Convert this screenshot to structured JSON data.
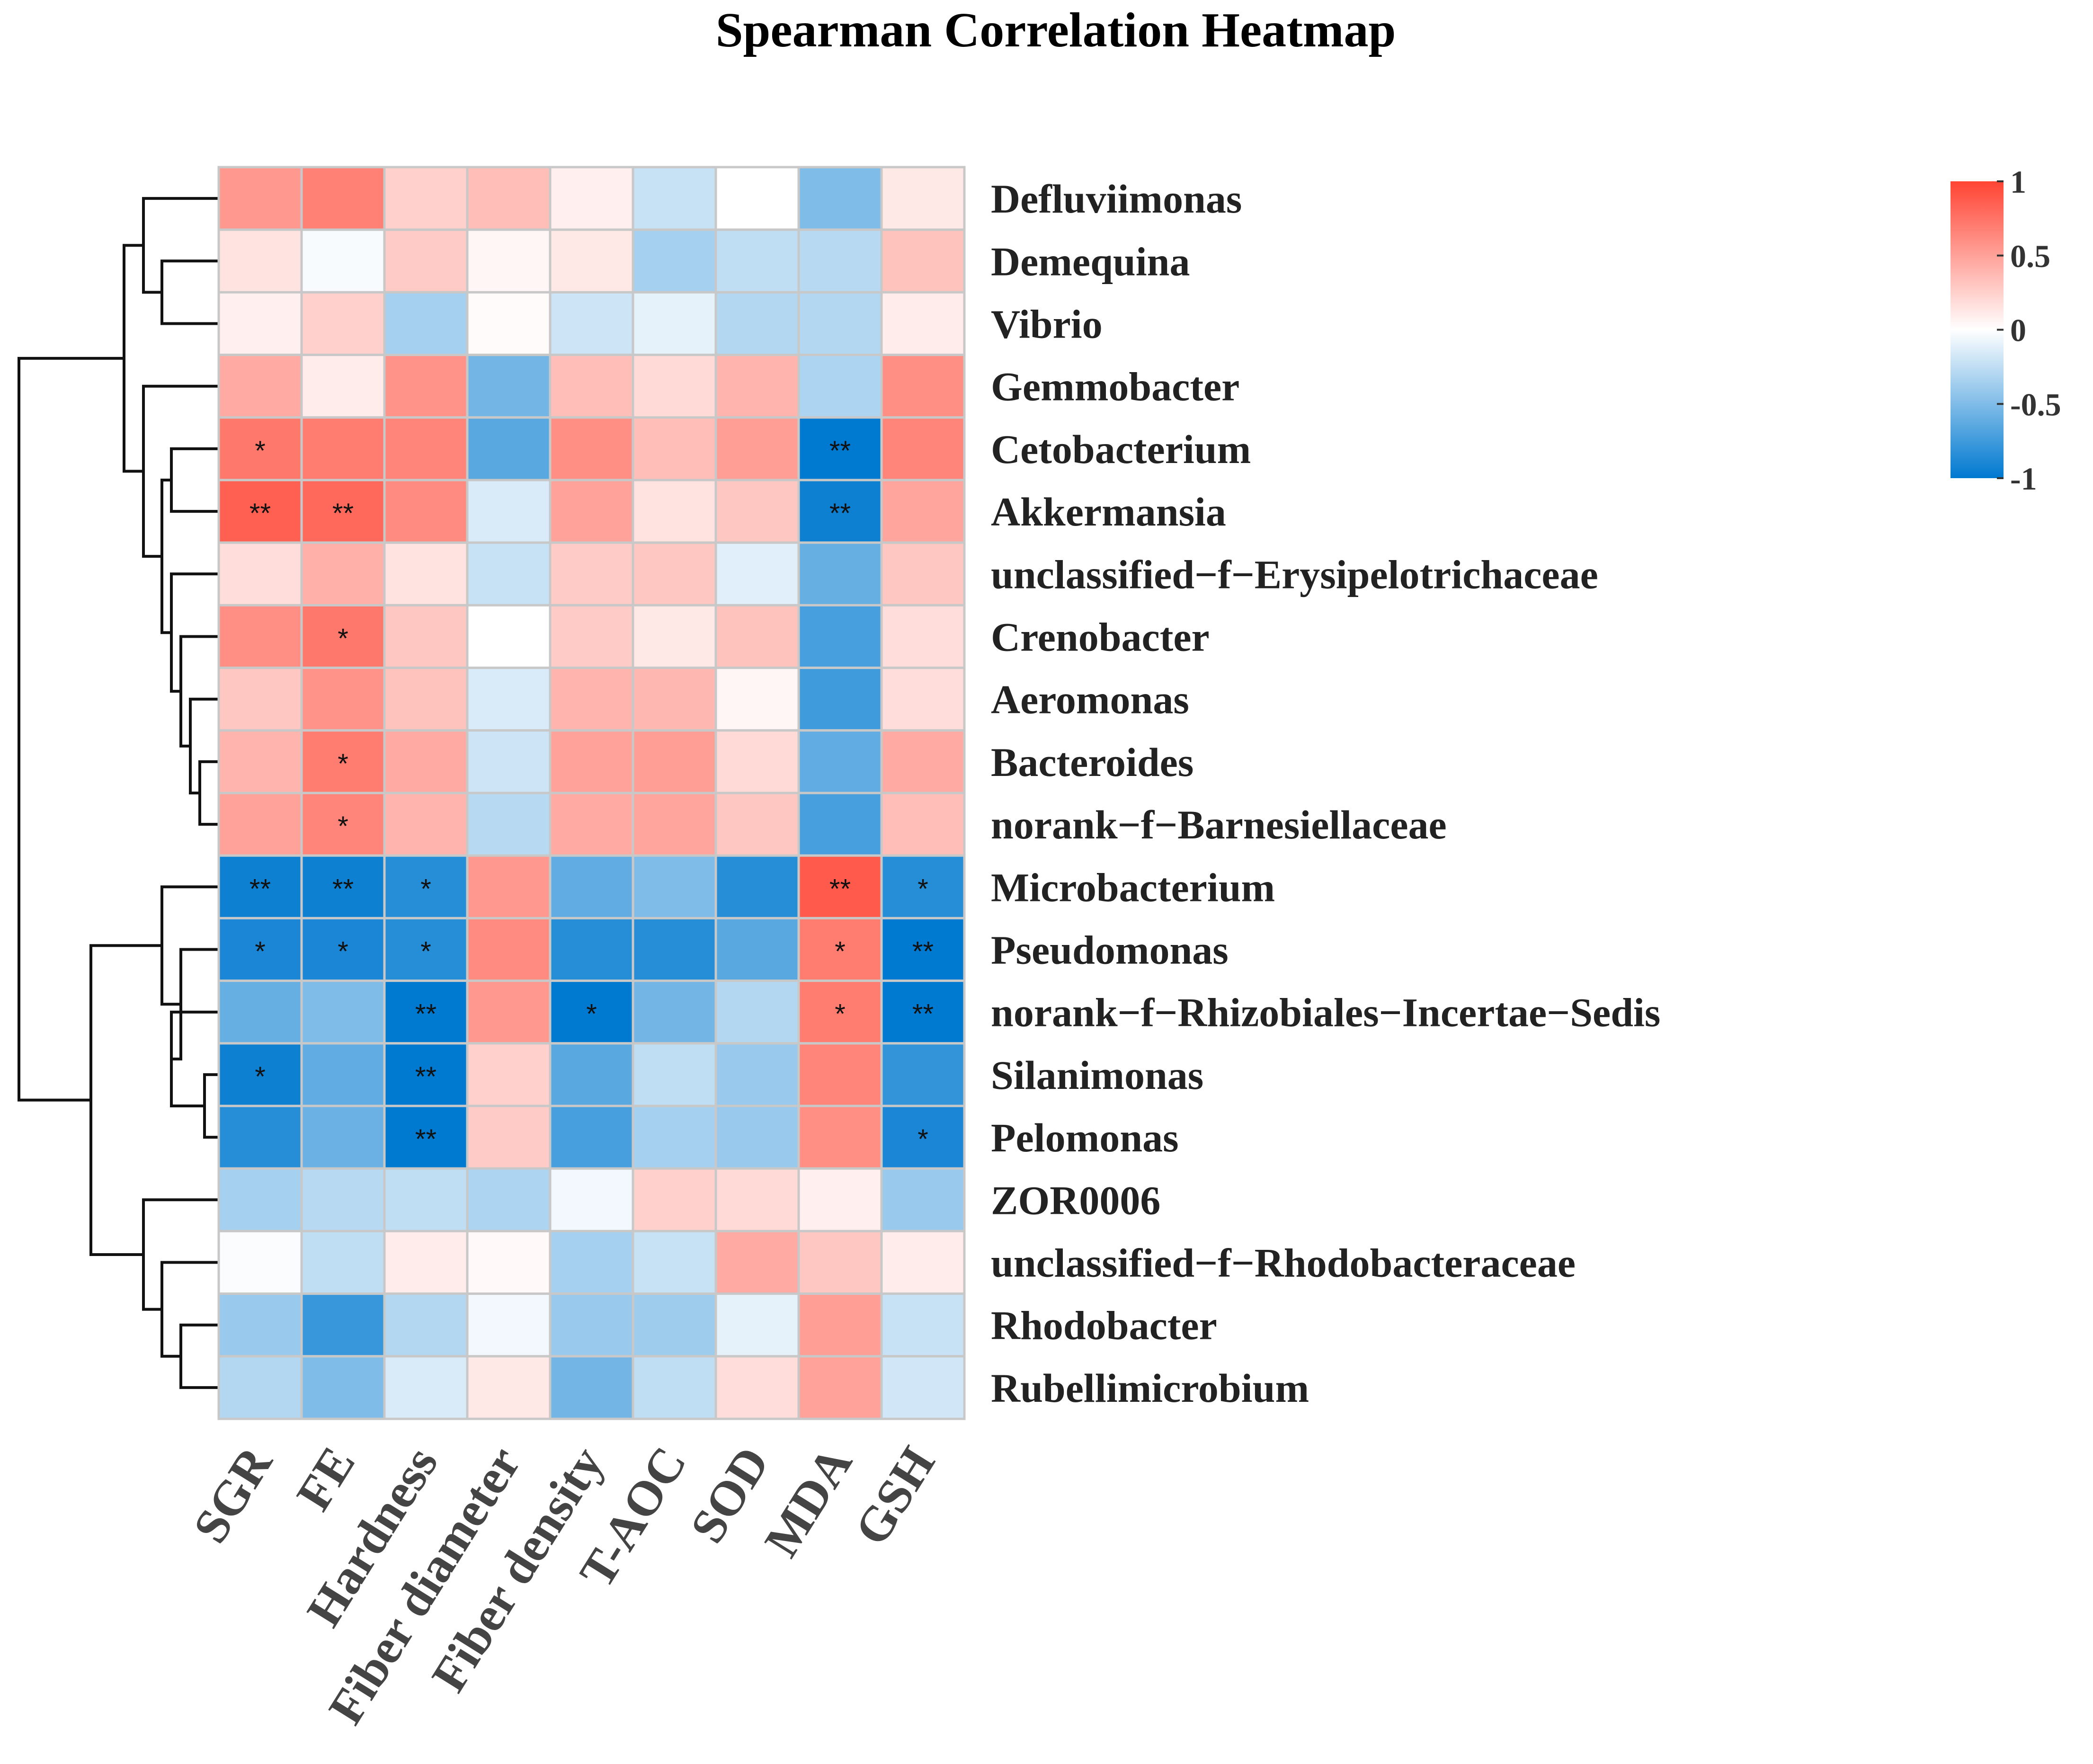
{
  "chart_data": {
    "type": "heatmap",
    "title": "Spearman Correlation Heatmap",
    "columns": [
      "SGR",
      "FE",
      "Hardness",
      "Fiber diameter",
      "Fiber density",
      "T-AOC",
      "SOD",
      "MDA",
      "GSH"
    ],
    "rows": [
      "Defluviimonas",
      "Demequina",
      "Vibrio",
      "Gemmobacter",
      "Cetobacterium",
      "Akkermansia",
      "unclassified−f−Erysipelotrichaceae",
      "Crenobacter",
      "Aeromonas",
      "Bacteroides",
      "norank−f−Barnesiellaceae",
      "Microbacterium",
      "Pseudomonas",
      "norank−f−Rhizobiales−Incertae−Sedis",
      "Silanimonas",
      "Pelomonas",
      "ZOR0006",
      "unclassified−f−Rhodobacteraceae",
      "Rhodobacter",
      "Rubellimicrobium"
    ],
    "values": [
      [
        0.55,
        0.68,
        0.25,
        0.35,
        0.08,
        -0.22,
        0.0,
        -0.5,
        0.12
      ],
      [
        0.15,
        -0.03,
        0.28,
        0.05,
        0.12,
        -0.35,
        -0.25,
        -0.28,
        0.32
      ],
      [
        0.08,
        0.25,
        -0.35,
        0.02,
        -0.2,
        -0.1,
        -0.3,
        -0.3,
        0.1
      ],
      [
        0.45,
        0.1,
        0.58,
        -0.55,
        0.35,
        0.2,
        0.4,
        -0.32,
        0.6
      ],
      [
        0.72,
        0.7,
        0.65,
        -0.65,
        0.6,
        0.35,
        0.52,
        -1.0,
        0.65
      ],
      [
        0.85,
        0.8,
        0.62,
        -0.15,
        0.5,
        0.15,
        0.3,
        -0.95,
        0.48
      ],
      [
        0.18,
        0.42,
        0.15,
        -0.22,
        0.28,
        0.3,
        -0.12,
        -0.6,
        0.3
      ],
      [
        0.6,
        0.72,
        0.3,
        0.0,
        0.28,
        0.12,
        0.32,
        -0.72,
        0.18
      ],
      [
        0.3,
        0.58,
        0.32,
        -0.15,
        0.4,
        0.38,
        0.05,
        -0.75,
        0.18
      ],
      [
        0.4,
        0.7,
        0.45,
        -0.2,
        0.5,
        0.52,
        0.2,
        -0.62,
        0.45
      ],
      [
        0.5,
        0.65,
        0.4,
        -0.28,
        0.45,
        0.48,
        0.3,
        -0.72,
        0.35
      ],
      [
        -0.95,
        -0.95,
        -0.85,
        0.55,
        -0.62,
        -0.5,
        -0.85,
        0.88,
        -0.85
      ],
      [
        -0.9,
        -0.9,
        -0.85,
        0.62,
        -0.85,
        -0.85,
        -0.65,
        0.7,
        -1.0
      ],
      [
        -0.6,
        -0.5,
        -1.0,
        0.55,
        -1.0,
        -0.55,
        -0.3,
        0.7,
        -1.0
      ],
      [
        -0.95,
        -0.62,
        -1.0,
        0.25,
        -0.65,
        -0.25,
        -0.4,
        0.65,
        -0.8
      ],
      [
        -0.85,
        -0.58,
        -1.0,
        0.28,
        -0.72,
        -0.35,
        -0.4,
        0.6,
        -0.9
      ],
      [
        -0.35,
        -0.28,
        -0.25,
        -0.32,
        -0.05,
        0.25,
        0.2,
        0.08,
        -0.4
      ],
      [
        -0.02,
        -0.25,
        0.1,
        0.03,
        -0.35,
        -0.22,
        0.45,
        0.3,
        0.1
      ],
      [
        -0.4,
        -0.78,
        -0.3,
        -0.05,
        -0.4,
        -0.38,
        -0.1,
        0.52,
        -0.22
      ],
      [
        -0.3,
        -0.5,
        -0.15,
        0.12,
        -0.55,
        -0.25,
        0.18,
        0.5,
        -0.18
      ]
    ],
    "significance": [
      [
        "",
        "",
        "",
        "",
        "",
        "",
        "",
        "",
        ""
      ],
      [
        "",
        "",
        "",
        "",
        "",
        "",
        "",
        "",
        ""
      ],
      [
        "",
        "",
        "",
        "",
        "",
        "",
        "",
        "",
        ""
      ],
      [
        "",
        "",
        "",
        "",
        "",
        "",
        "",
        "",
        ""
      ],
      [
        "*",
        "",
        "",
        "",
        "",
        "",
        "",
        "**",
        ""
      ],
      [
        "**",
        "**",
        "",
        "",
        "",
        "",
        "",
        "**",
        ""
      ],
      [
        "",
        "",
        "",
        "",
        "",
        "",
        "",
        "",
        ""
      ],
      [
        "",
        "*",
        "",
        "",
        "",
        "",
        "",
        "",
        ""
      ],
      [
        "",
        "",
        "",
        "",
        "",
        "",
        "",
        "",
        ""
      ],
      [
        "",
        "*",
        "",
        "",
        "",
        "",
        "",
        "",
        ""
      ],
      [
        "",
        "*",
        "",
        "",
        "",
        "",
        "",
        "",
        ""
      ],
      [
        "**",
        "**",
        "*",
        "",
        "",
        "",
        "",
        "**",
        "*"
      ],
      [
        "*",
        "*",
        "*",
        "",
        "",
        "",
        "",
        "*",
        "**"
      ],
      [
        "",
        "",
        "**",
        "",
        "*",
        "",
        "",
        "*",
        "**"
      ],
      [
        "*",
        "",
        "**",
        "",
        "",
        "",
        "",
        "",
        ""
      ],
      [
        "",
        "",
        "**",
        "",
        "",
        "",
        "",
        "",
        "*"
      ],
      [
        "",
        "",
        "",
        "",
        "",
        "",
        "",
        "",
        ""
      ],
      [
        "",
        "",
        "",
        "",
        "",
        "",
        "",
        "",
        ""
      ],
      [
        "",
        "",
        "",
        "",
        "",
        "",
        "",
        "",
        ""
      ],
      [
        "",
        "",
        "",
        "",
        "",
        "",
        "",
        "",
        ""
      ]
    ],
    "legend": {
      "ticks": [
        "1",
        "0.5",
        "0",
        "-0.5",
        "-1"
      ],
      "colors": {
        "high": "#ff4433",
        "mid": "#ffffff",
        "low": "#0079d0"
      },
      "range": [
        -1,
        1
      ]
    }
  }
}
